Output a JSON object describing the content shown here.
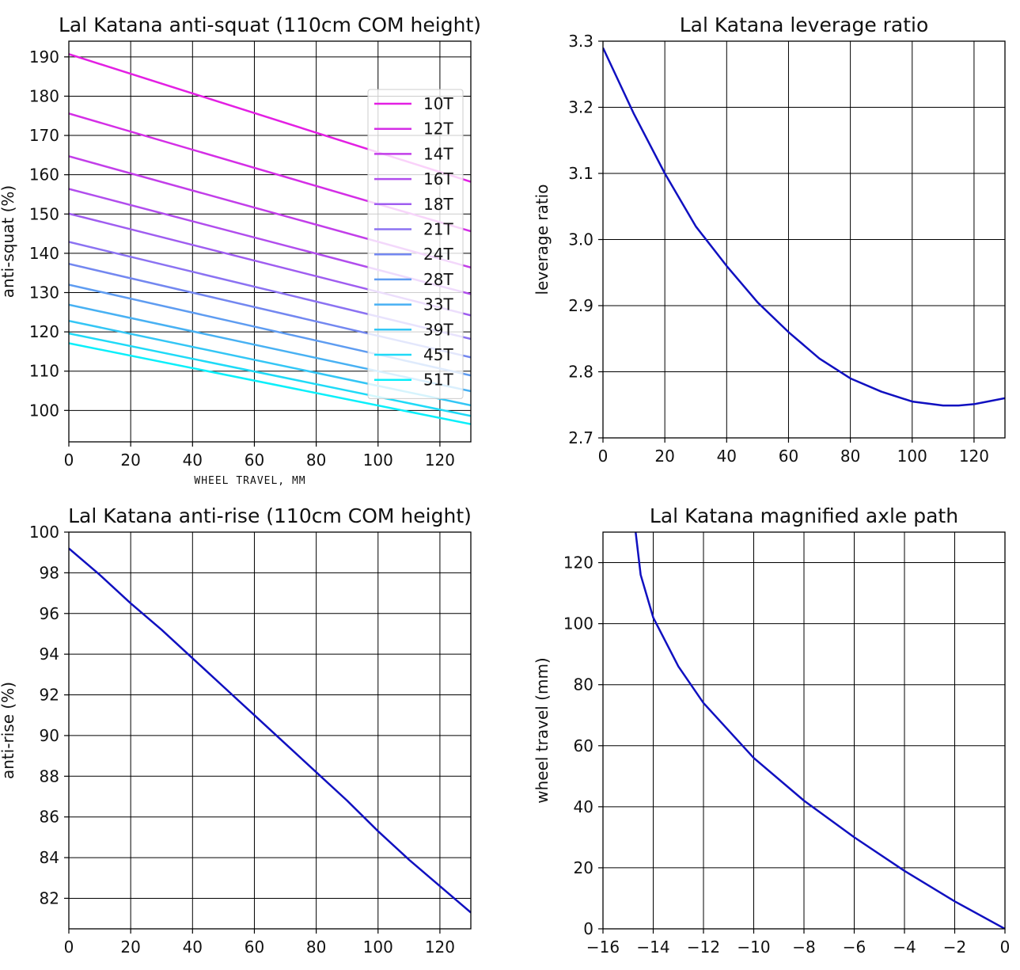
{
  "chart_data": [
    {
      "type": "line",
      "title": "Lal Katana anti-squat (110cm COM height)",
      "xlabel": "WHEEL TRAVEL, MM",
      "ylabel": "anti-squat (%)",
      "xlim": [
        0,
        130
      ],
      "ylim": [
        92,
        194
      ],
      "xticks": [
        0,
        20,
        40,
        60,
        80,
        100,
        120
      ],
      "yticks": [
        100,
        110,
        120,
        130,
        140,
        150,
        160,
        170,
        180,
        190
      ],
      "grid": true,
      "legend": "right",
      "x": [
        0,
        130
      ],
      "series": [
        {
          "name": "10T",
          "color": "#e31fe3",
          "values": [
            190.7,
            158.2
          ]
        },
        {
          "name": "12T",
          "color": "#d42ee6",
          "values": [
            175.6,
            145.6
          ]
        },
        {
          "name": "14T",
          "color": "#c23ee9",
          "values": [
            164.7,
            136.4
          ]
        },
        {
          "name": "16T",
          "color": "#b14ded",
          "values": [
            156.4,
            129.6
          ]
        },
        {
          "name": "18T",
          "color": "#9f5df0",
          "values": [
            150.1,
            124.2
          ]
        },
        {
          "name": "21T",
          "color": "#8b72f2",
          "values": [
            142.9,
            118.2
          ]
        },
        {
          "name": "24T",
          "color": "#7387f0",
          "values": [
            137.3,
            113.5
          ]
        },
        {
          "name": "28T",
          "color": "#5e9cf1",
          "values": [
            132.0,
            108.9
          ]
        },
        {
          "name": "33T",
          "color": "#48b1f3",
          "values": [
            126.9,
            104.9
          ]
        },
        {
          "name": "39T",
          "color": "#33c6f5",
          "values": [
            122.8,
            101.3
          ]
        },
        {
          "name": "45T",
          "color": "#1fdaf7",
          "values": [
            119.6,
            98.6
          ]
        },
        {
          "name": "51T",
          "color": "#0aeffa",
          "values": [
            117.1,
            96.5
          ]
        }
      ]
    },
    {
      "type": "line",
      "title": "Lal Katana leverage ratio",
      "xlabel": "",
      "ylabel": "leverage ratio",
      "xlim": [
        0,
        130
      ],
      "ylim": [
        2.7,
        3.3
      ],
      "xticks": [
        0,
        20,
        40,
        60,
        80,
        100,
        120
      ],
      "yticks": [
        2.7,
        2.8,
        2.9,
        3.0,
        3.1,
        3.2,
        3.3
      ],
      "grid": true,
      "color": "#1010c0",
      "x": [
        0,
        10,
        20,
        30,
        40,
        50,
        60,
        70,
        80,
        90,
        100,
        110,
        115,
        120,
        130
      ],
      "values": [
        3.29,
        3.19,
        3.1,
        3.02,
        2.96,
        2.905,
        2.86,
        2.82,
        2.79,
        2.77,
        2.755,
        2.749,
        2.749,
        2.751,
        2.76
      ]
    },
    {
      "type": "line",
      "title": "Lal Katana anti-rise (110cm COM height)",
      "xlabel": "",
      "ylabel": "anti-rise (%)",
      "xlim": [
        0,
        130
      ],
      "ylim": [
        80.5,
        100
      ],
      "xticks": [
        0,
        20,
        40,
        60,
        80,
        100,
        120
      ],
      "yticks": [
        82,
        84,
        86,
        88,
        90,
        92,
        94,
        96,
        98,
        100
      ],
      "grid": true,
      "color": "#1010c0",
      "x": [
        0,
        10,
        20,
        30,
        40,
        50,
        60,
        70,
        80,
        90,
        100,
        110,
        120,
        130
      ],
      "values": [
        99.2,
        97.9,
        96.5,
        95.2,
        93.8,
        92.4,
        91.0,
        89.6,
        88.2,
        86.8,
        85.3,
        83.9,
        82.6,
        81.3
      ]
    },
    {
      "type": "line",
      "title": "Lal Katana magnified axle path",
      "xlabel": "",
      "ylabel": "wheel travel (mm)",
      "xlim": [
        -16,
        0
      ],
      "ylim": [
        0,
        130
      ],
      "xticks": [
        -16,
        -14,
        -12,
        -10,
        -8,
        -6,
        -4,
        -2,
        0
      ],
      "yticks": [
        0,
        20,
        40,
        60,
        80,
        100,
        120
      ],
      "grid": true,
      "color": "#1010c0",
      "x": [
        0,
        -2.0,
        -4.0,
        -6.0,
        -8.0,
        -10.0,
        -12.0,
        -13.0,
        -14.0,
        -14.5,
        -14.7
      ],
      "y": [
        0,
        9,
        19,
        30,
        42,
        56,
        74,
        86,
        102,
        116,
        130
      ]
    }
  ]
}
